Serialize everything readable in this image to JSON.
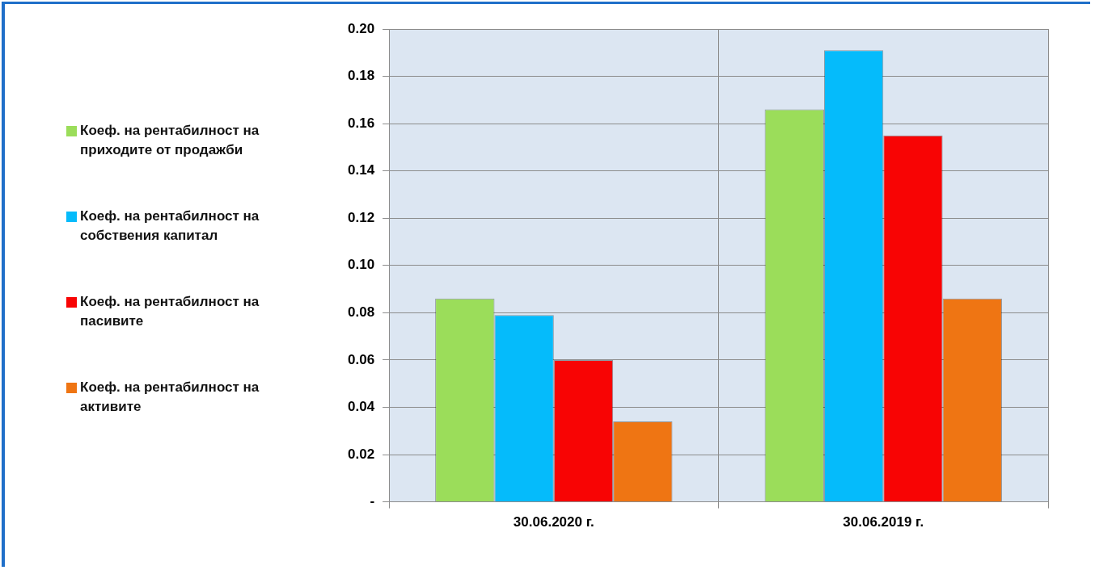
{
  "chart_data": {
    "type": "bar",
    "categories": [
      "30.06.2020 г.",
      "30.06.2019 г."
    ],
    "series": [
      {
        "name": "Коеф. на рентабилност на приходите от продажби",
        "color": "#9bdd5a",
        "values": [
          0.086,
          0.166
        ]
      },
      {
        "name": "Коеф. на рентабилност на собствения капитал",
        "color": "#05bbfb",
        "values": [
          0.079,
          0.191
        ]
      },
      {
        "name": "Коеф. на рентабилност на пасивите",
        "color": "#f80404",
        "values": [
          0.06,
          0.155
        ]
      },
      {
        "name": "Коеф. на рентабилност на активите",
        "color": "#ef7513",
        "values": [
          0.034,
          0.086
        ]
      }
    ],
    "ylim": [
      0,
      0.2
    ],
    "yticks": [
      {
        "value": 0,
        "label": "-"
      },
      0.02,
      0.04,
      0.06,
      0.08,
      {
        "value": 0.1,
        "label": "0.10"
      },
      0.12,
      0.14,
      0.16,
      0.18,
      {
        "value": 0.2,
        "label": "0.20"
      }
    ],
    "grid": true,
    "legend": "left"
  }
}
